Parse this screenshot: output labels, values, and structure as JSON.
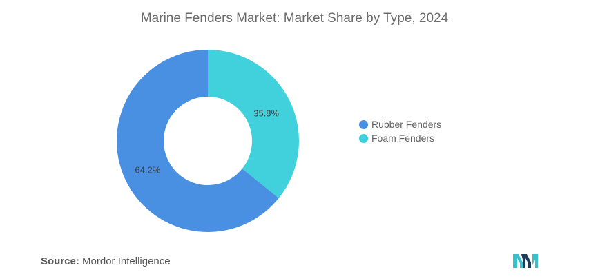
{
  "chart_data": {
    "type": "pie",
    "title": "Marine Fenders Market: Market Share by Type, 2024",
    "categories": [
      "Rubber Fenders",
      "Foam Fenders"
    ],
    "values": [
      64.2,
      35.8
    ],
    "value_labels": [
      "64.2%",
      "35.8%"
    ],
    "colors": [
      "#4A90E2",
      "#40D1DC"
    ],
    "donut": true,
    "legend_position": "right"
  },
  "source": {
    "label": "Source:",
    "text": "Mordor Intelligence"
  },
  "colors": {
    "logo_dark": "#1f3b5a",
    "logo_teal": "#3dbfc9"
  }
}
